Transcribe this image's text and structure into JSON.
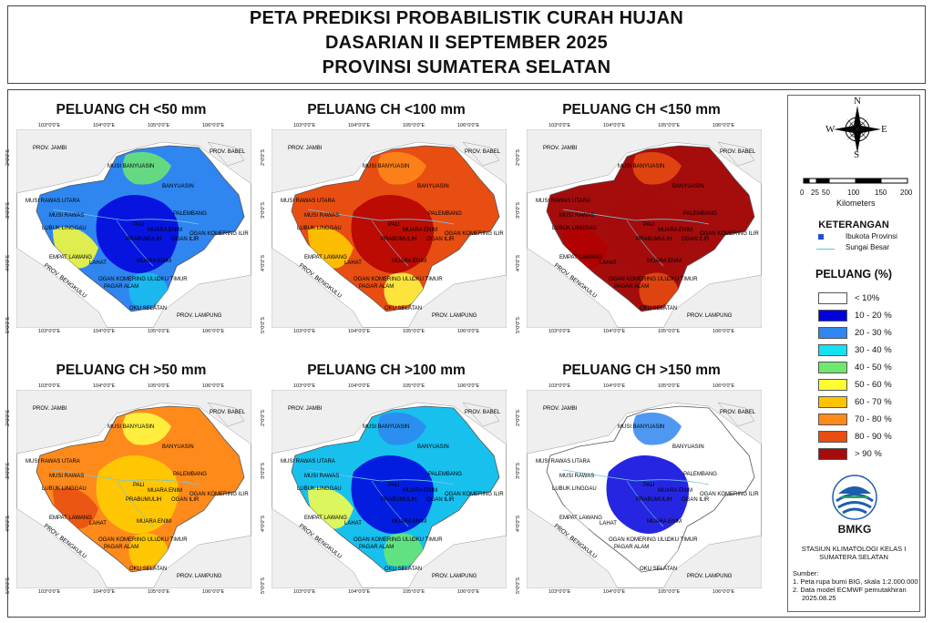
{
  "title": {
    "line1": "PETA PREDIKSI PROBABILISTIK CURAH HUJAN",
    "line2": "DASARIAN II SEPTEMBER 2025",
    "line3": "PROVINSI SUMATERA SELATAN"
  },
  "panels": [
    {
      "title": "PELUANG CH <50 mm",
      "base": "#2f86f0",
      "accents": [
        "#0000dd",
        "#6fe86f",
        "#ffff33",
        "#18c0ee"
      ]
    },
    {
      "title": "PELUANG CH <100 mm",
      "base": "#e84d12",
      "accents": [
        "#b30000",
        "#ff8a1c",
        "#ffd000",
        "#ffff44"
      ]
    },
    {
      "title": "PELUANG CH <150 mm",
      "base": "#a50c0c",
      "accents": [
        "#a50c0c",
        "#e84d12",
        "#b30000",
        "#e84d12"
      ]
    },
    {
      "title": "PELUANG CH >50 mm",
      "base": "#ff8a1c",
      "accents": [
        "#ffd000",
        "#ffff44",
        "#e84d12",
        "#ffd000"
      ]
    },
    {
      "title": "PELUANG CH >100 mm",
      "base": "#18c0ee",
      "accents": [
        "#0000dd",
        "#2f86f0",
        "#ffff44",
        "#6fe86f"
      ]
    },
    {
      "title": "PELUANG CH >150 mm",
      "base": "#ffffff",
      "accents": [
        "#0000dd",
        "#2f86f0",
        "#ffffff",
        "#ffffff"
      ]
    }
  ],
  "map_labels": {
    "jambi": "PROV. JAMBI",
    "babel": "PROV. BABEL",
    "bengkulu": "PROV. BENGKULU",
    "lampung": "PROV. LAMPUNG",
    "banyuasin_musi": "MUSI BANYUASIN",
    "banyuasin": "BANYUASIN",
    "mura": "MUSI RAWAS UTARA",
    "musi_rawas": "MUSI RAWAS",
    "palembang": "PALEMBANG",
    "lubuk": "LUBUK LINGGAU",
    "pali": "PALI",
    "muara_enim_top": "MUARA ENIM",
    "oki": "OGAN KOMERING ILIR",
    "prabumulih": "PRABUMULIH",
    "ogan_ilir": "OGAN ILIR",
    "empat_lawang": "EMPAT LAWANG",
    "lahat": "LAHAT",
    "muara_enim": "MUARA ENIM",
    "oku": "OGAN KOMERING ULU",
    "oku_timur": "OKU TIMUR",
    "pagar_alam": "PAGAR ALAM",
    "oku_selatan": "OKU SELATAN",
    "lon": [
      "103°0'0\"E",
      "104°0'0\"E",
      "105°0'0\"E",
      "106°0'0\"E"
    ],
    "lat": [
      "2°0'0\"S",
      "3°0'0\"S",
      "4°0'0\"S",
      "5°0'0\"S"
    ]
  },
  "legend": {
    "compass": {
      "n": "N",
      "s": "S",
      "e": "E",
      "w": "W"
    },
    "scale_ticks": [
      "0",
      "25",
      "50",
      "100",
      "150",
      "200"
    ],
    "scale_unit": "Kilometers",
    "keterangan": "KETERANGAN",
    "ibukota": "Ibukota Provinsi",
    "sungai": "Sungai Besar",
    "peluang_title": "PELUANG (%)",
    "classes": [
      {
        "label": "< 10%",
        "color": "#ffffff"
      },
      {
        "label": "10 - 20 %",
        "color": "#0000dd"
      },
      {
        "label": "20 - 30 %",
        "color": "#2f86f0"
      },
      {
        "label": "30 - 40 %",
        "color": "#18e0f0"
      },
      {
        "label": "40 - 50 %",
        "color": "#6fe86f"
      },
      {
        "label": "50 - 60 %",
        "color": "#ffff33"
      },
      {
        "label": "60 - 70 %",
        "color": "#ffc400"
      },
      {
        "label": "70 - 80 %",
        "color": "#ff8a1c"
      },
      {
        "label": "80 - 90 %",
        "color": "#e84d12"
      },
      {
        "label": "> 90 %",
        "color": "#a50c0c"
      }
    ],
    "bmkg": "BMKG",
    "station_line1": "STASIUN KLIMATOLOGI KELAS I",
    "station_line2": "SUMATERA SELATAN",
    "sumber": "Sumber:",
    "source1": "1. Peta rupa bumi BIG, skala 1:2.000.000",
    "source2": "2. Data model ECMWF pemutakhiran",
    "source2b": "2025.08.25"
  }
}
